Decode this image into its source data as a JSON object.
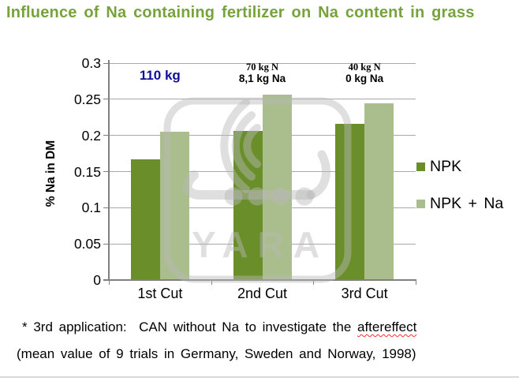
{
  "slide": {
    "title": "Influence of Na containing fertilizer on Na content in grass"
  },
  "chart_data": {
    "type": "bar",
    "categories": [
      "1st Cut",
      "2nd Cut",
      "3rd Cut"
    ],
    "series": [
      {
        "name": "NPK",
        "color": "#6a8f2a",
        "values": [
          0.167,
          0.206,
          0.216
        ]
      },
      {
        "name": "NPK + Na",
        "color": "#a9be8c",
        "values": [
          0.205,
          0.256,
          0.244
        ]
      }
    ],
    "ylabel": "% Na in DM",
    "xlabel": "",
    "ylim": [
      0,
      0.3
    ],
    "yticks": [
      0,
      0.05,
      0.1,
      0.15,
      0.2,
      0.25,
      0.3
    ],
    "grid": true,
    "legend_position": "right",
    "annotations": [
      {
        "category": "1st Cut",
        "lines": [
          "110 kg"
        ],
        "variant": "headline",
        "color": "#0f0f9b"
      },
      {
        "category": "2nd Cut",
        "lines": [
          "70 kg N",
          "8,1 kg Na"
        ],
        "variant": "detail",
        "color": "#000000"
      },
      {
        "category": "3rd Cut",
        "lines": [
          "40 kg N",
          "0 kg Na"
        ],
        "variant": "detail",
        "color": "#000000"
      }
    ]
  },
  "watermark": {
    "text": "YARA",
    "icon": "viking-ship-icon"
  },
  "footnote": {
    "line1_prefix": "* 3rd application:  CAN without Na to investigate the ",
    "line1_flagged_word": "aftereffect",
    "line2": "(mean value of 9 trials in Germany, Sweden and Norway, 1998)"
  },
  "colors": {
    "title_green": "#76a33c",
    "npk_green": "#6a8f2a",
    "npk_na_green": "#a9be8c",
    "annotation_navy": "#0f0f9b",
    "gridline_gray": "#a8a8a8",
    "axis_gray": "#808080",
    "watermark_gray": "#b9b9b9",
    "divider_gray": "#d9d9d9",
    "spellcheck_red": "#ff2d2d"
  }
}
